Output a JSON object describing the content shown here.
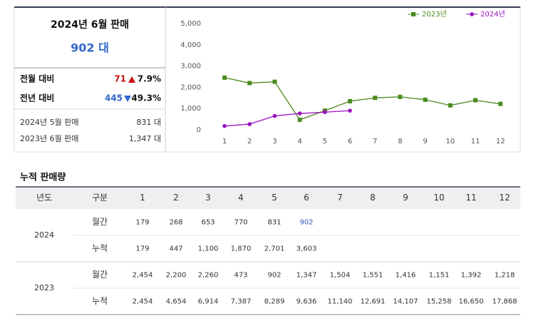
{
  "summary": {
    "title": "2024년 6월 판매",
    "total": "902 대",
    "mom": {
      "label": "전월 대비",
      "change": "71",
      "rate": "7.9%"
    },
    "yoy": {
      "label": "전년 대비",
      "change": "445",
      "rate": "49.3%"
    },
    "prev_month": {
      "label": "2024년 5월 판매",
      "value": "831 대"
    },
    "prev_year": {
      "label": "2023년 6월 판매",
      "value": "1,347 대"
    }
  },
  "chart_data": {
    "type": "line",
    "categories": [
      "1",
      "2",
      "3",
      "4",
      "5",
      "6",
      "7",
      "8",
      "9",
      "10",
      "11",
      "12"
    ],
    "series": [
      {
        "name": "2023년",
        "color": "#4b8a1e",
        "marker": "square",
        "values": [
          2454,
          2200,
          2260,
          473,
          902,
          1347,
          1504,
          1551,
          1416,
          1151,
          1392,
          1218
        ]
      },
      {
        "name": "2024년",
        "color": "#9b10c0",
        "marker": "circle",
        "values": [
          179,
          268,
          653,
          770,
          831,
          902,
          null,
          null,
          null,
          null,
          null,
          null
        ]
      }
    ],
    "ylim": [
      0,
      5000
    ],
    "yticks": [
      0,
      {
        "value": 1000,
        "label": "1,000"
      },
      {
        "value": 2000,
        "label": "2,000"
      },
      {
        "value": 3000,
        "label": "3,000"
      },
      {
        "value": 4000,
        "label": "4,000"
      },
      {
        "value": 5000,
        "label": "5,000"
      }
    ],
    "grid": false,
    "legend": "top-right"
  },
  "table": {
    "title": "누적 판매량",
    "header": [
      "년도",
      "구분",
      "1",
      "2",
      "3",
      "4",
      "5",
      "6",
      "7",
      "8",
      "9",
      "10",
      "11",
      "12"
    ],
    "groups": [
      {
        "year": "2024",
        "rows": [
          {
            "label": "월간",
            "values": [
              "179",
              "268",
              "653",
              "770",
              "831",
              "902"
            ]
          },
          {
            "label": "누적",
            "values": [
              "179",
              "447",
              "1,100",
              "1,870",
              "2,701",
              "3,603"
            ]
          }
        ]
      },
      {
        "year": "2023",
        "rows": [
          {
            "label": "월간",
            "values": [
              "2,454",
              "2,200",
              "2,260",
              "473",
              "902",
              "1,347",
              "1,504",
              "1,551",
              "1,416",
              "1,151",
              "1,392",
              "1,218"
            ]
          },
          {
            "label": "누적",
            "values": [
              "2,454",
              "4,654",
              "6,914",
              "7,387",
              "8,289",
              "9,636",
              "11,140",
              "12,691",
              "14,107",
              "15,258",
              "16,650",
              "17,868"
            ]
          }
        ]
      }
    ]
  }
}
